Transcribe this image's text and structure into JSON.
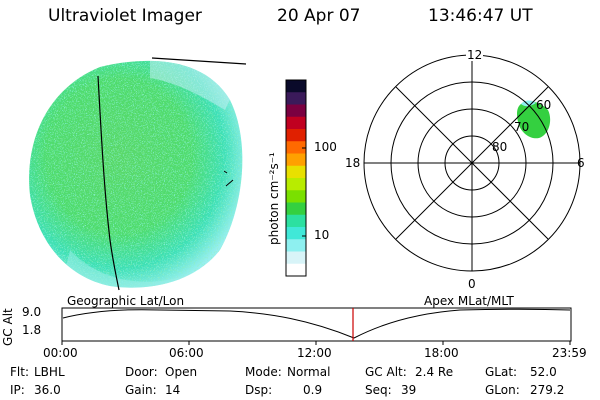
{
  "header": {
    "instrument": "Ultraviolet Imager",
    "date": "20 Apr 07",
    "time": "13:46:47 UT"
  },
  "colorbar": {
    "unit_label": "photon cm⁻²s⁻¹",
    "ticks": [
      "100",
      "10"
    ],
    "colors": [
      "#0a0a2a",
      "#3a1a5a",
      "#7a0040",
      "#c00020",
      "#e02000",
      "#ff6a00",
      "#ffa000",
      "#e8e000",
      "#b8ec00",
      "#7ae000",
      "#34d040",
      "#2ce0a0",
      "#40e8d8",
      "#8ef0f0",
      "#d8f4f8",
      "#ffffff"
    ]
  },
  "polar": {
    "mlt_labels": {
      "top": "12",
      "bottom": "0",
      "left": "18",
      "right": "6"
    },
    "lat_labels": [
      "60",
      "70",
      "80"
    ]
  },
  "altitude_strip": {
    "ylabel": "GC Alt",
    "yticks": [
      "9.0",
      "1.8"
    ],
    "left_caption": "Geographic Lat/Lon",
    "right_caption": "Apex MLat/MLT",
    "xticks": [
      "00:00",
      "06:00",
      "12:00",
      "18:00",
      "23:59"
    ],
    "cursor_color": "#cc0000"
  },
  "info": {
    "row1": [
      {
        "label": "Flt:",
        "value": "LBHL"
      },
      {
        "label": "Door:",
        "value": "Open"
      },
      {
        "label": "Mode:",
        "value": "Normal"
      },
      {
        "label": "GC Alt:",
        "value": "2.4 Re"
      },
      {
        "label": "GLat:",
        "value": "52.0"
      }
    ],
    "row2": [
      {
        "label": "IP:",
        "value": "36.0"
      },
      {
        "label": "Gain:",
        "value": "14"
      },
      {
        "label": "Dsp:",
        "value": "0.9"
      },
      {
        "label": "Seq:",
        "value": "39"
      },
      {
        "label": "GLon:",
        "value": "279.2"
      }
    ]
  },
  "colors": {
    "disk_green": "#4fe06a",
    "disk_cyan": "#40e8d0",
    "disk_pale": "#c8f4f4",
    "blob_green": "#34d040"
  }
}
